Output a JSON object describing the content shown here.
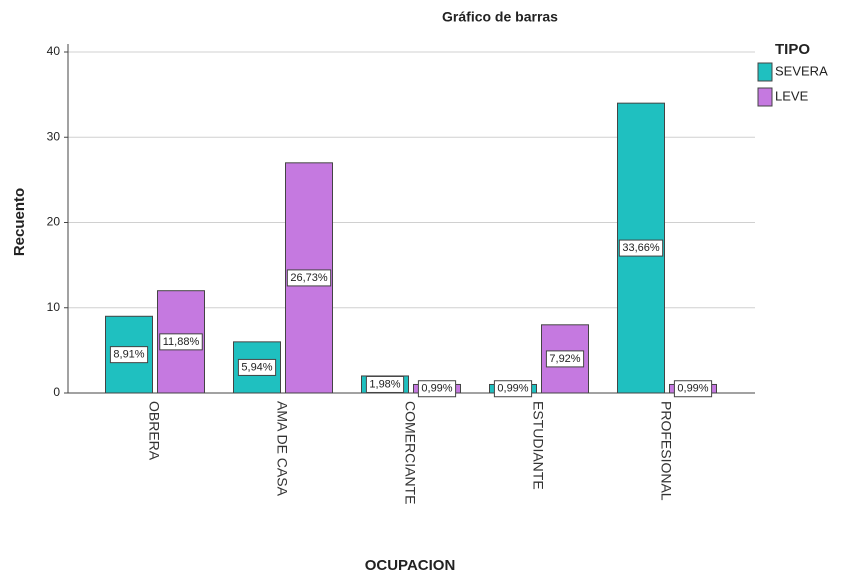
{
  "chart_data": {
    "type": "bar",
    "title": "Gráfico de barras",
    "x_label": "OCUPACION",
    "y_label": "Recuento",
    "categories": [
      "OBRERA",
      "AMA DE CASA",
      "COMERCIANTE",
      "ESTUDIANTE",
      "PROFESIONAL"
    ],
    "legend_title": "TIPO",
    "legend": "right",
    "series": [
      {
        "name": "SEVERA",
        "color": "#1fc0c0",
        "values": [
          9,
          6,
          2,
          1,
          34
        ],
        "value_labels": [
          "8,91%",
          "5,94%",
          "1,98%",
          "0,99%",
          "33,66%"
        ]
      },
      {
        "name": "LEVE",
        "color": "#c579e0",
        "values": [
          12,
          27,
          1,
          8,
          1
        ],
        "value_labels": [
          "11,88%",
          "26,73%",
          "0,99%",
          "7,92%",
          "0,99%"
        ]
      }
    ],
    "ylim": [
      0,
      40
    ],
    "yticks": [
      0,
      10,
      20,
      30,
      40
    ],
    "grid": true
  }
}
